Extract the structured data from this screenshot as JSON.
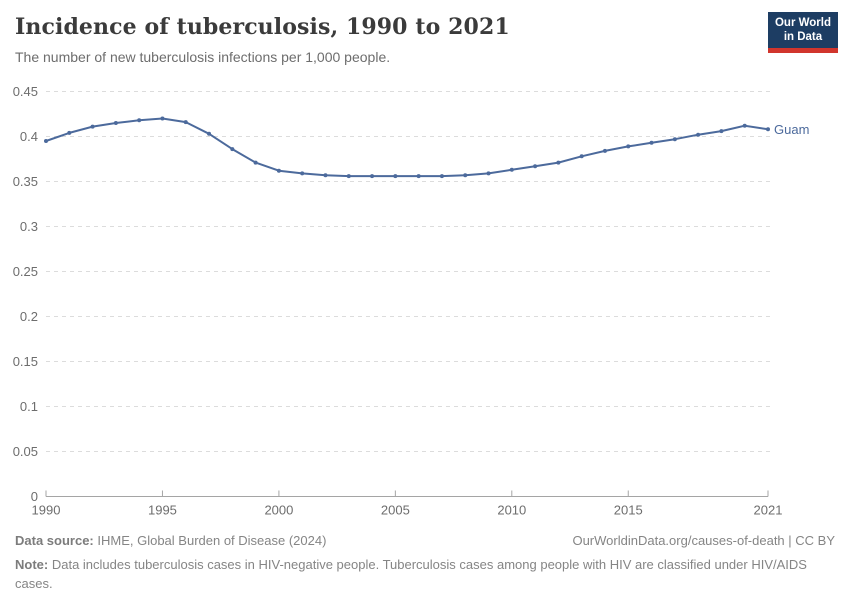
{
  "header": {
    "title": "Incidence of tuberculosis, 1990 to 2021",
    "subtitle": "The number of new tuberculosis infections per 1,000 people.",
    "logo": {
      "line1": "Our World",
      "line2": "in Data"
    }
  },
  "footer": {
    "data_source_label": "Data source:",
    "data_source_value": "IHME, Global Burden of Disease (2024)",
    "link": "OurWorldinData.org/causes-of-death | CC BY",
    "note_label": "Note:",
    "note_text": "Data includes tuberculosis cases in HIV-negative people. Tuberculosis cases among people with HIV are classified under HIV/AIDS cases."
  },
  "colors": {
    "line": "#4C6A9C",
    "logo_background": "#1d3d63",
    "logo_bar": "#d1352d",
    "grid": "#dcdcdc",
    "axis_text": "#6d6d6d"
  },
  "chart_data": {
    "type": "line",
    "title": "Incidence of tuberculosis, 1990 to 2021",
    "subtitle": "The number of new tuberculosis infections per 1,000 people.",
    "xlabel": "",
    "ylabel": "",
    "xlim": [
      1990,
      2021
    ],
    "ylim": [
      0,
      0.45
    ],
    "x_ticks": [
      1990,
      1995,
      2000,
      2005,
      2010,
      2015,
      2021
    ],
    "y_ticks": [
      0,
      0.05,
      0.1,
      0.15,
      0.2,
      0.25,
      0.3,
      0.35,
      0.4,
      0.45
    ],
    "grid": "horizontal-dashed",
    "legend_position": "end-of-line-label",
    "series": [
      {
        "name": "Guam",
        "color": "#4C6A9C",
        "x": [
          1990,
          1991,
          1992,
          1993,
          1994,
          1995,
          1996,
          1997,
          1998,
          1999,
          2000,
          2001,
          2002,
          2003,
          2004,
          2005,
          2006,
          2007,
          2008,
          2009,
          2010,
          2011,
          2012,
          2013,
          2014,
          2015,
          2016,
          2017,
          2018,
          2019,
          2020,
          2021
        ],
        "values": [
          0.395,
          0.404,
          0.411,
          0.415,
          0.418,
          0.42,
          0.416,
          0.403,
          0.386,
          0.371,
          0.362,
          0.359,
          0.357,
          0.356,
          0.356,
          0.356,
          0.356,
          0.356,
          0.357,
          0.359,
          0.363,
          0.367,
          0.371,
          0.378,
          0.384,
          0.389,
          0.393,
          0.397,
          0.402,
          0.406,
          0.412,
          0.408
        ]
      }
    ]
  }
}
